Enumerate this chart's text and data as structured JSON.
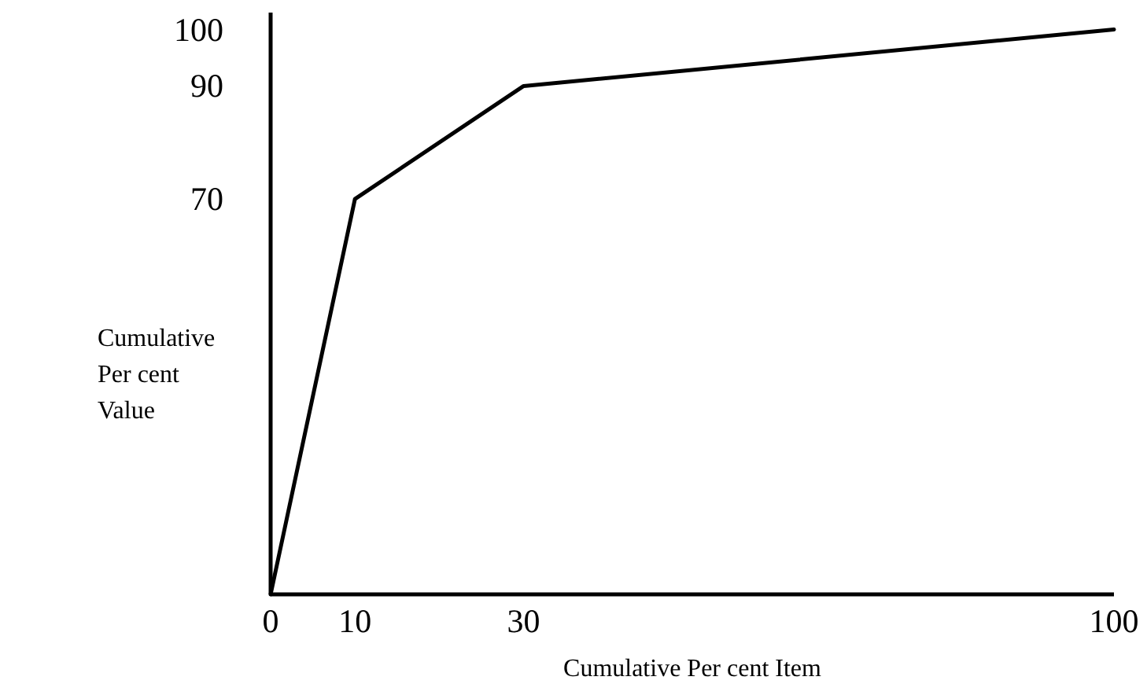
{
  "chart_data": {
    "type": "line",
    "xlabel": "Cumulative Per cent Item",
    "ylabel": "Cumulative Per cent Value",
    "x": [
      0,
      10,
      30,
      100
    ],
    "series": [
      {
        "color": "#000000",
        "values": [
          0,
          70,
          90,
          100
        ]
      }
    ],
    "xlim": [
      0,
      100
    ],
    "xticks": [
      0,
      10,
      30,
      100
    ],
    "ylim": [
      0,
      103
    ],
    "yticks": [
      70,
      90,
      100
    ],
    "grid": false,
    "marker": "none",
    "line_style": "solid"
  }
}
